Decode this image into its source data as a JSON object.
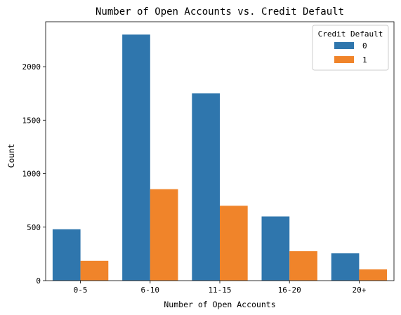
{
  "chart_data": {
    "type": "bar",
    "title": "Number of Open Accounts vs. Credit Default",
    "xlabel": "Number of Open Accounts",
    "ylabel": "Count",
    "categories": [
      "0-5",
      "6-10",
      "11-15",
      "16-20",
      "20+"
    ],
    "series": [
      {
        "name": "0",
        "values": [
          480,
          2300,
          1750,
          600,
          255
        ],
        "color": "#2f76ad"
      },
      {
        "name": "1",
        "values": [
          185,
          855,
          700,
          275,
          105
        ],
        "color": "#f0842a"
      }
    ],
    "ylim": [
      0,
      2420
    ],
    "yticks": [
      0,
      500,
      1000,
      1500,
      2000
    ],
    "grid": false,
    "legend": {
      "title": "Credit Default",
      "placement": "top-right"
    }
  }
}
